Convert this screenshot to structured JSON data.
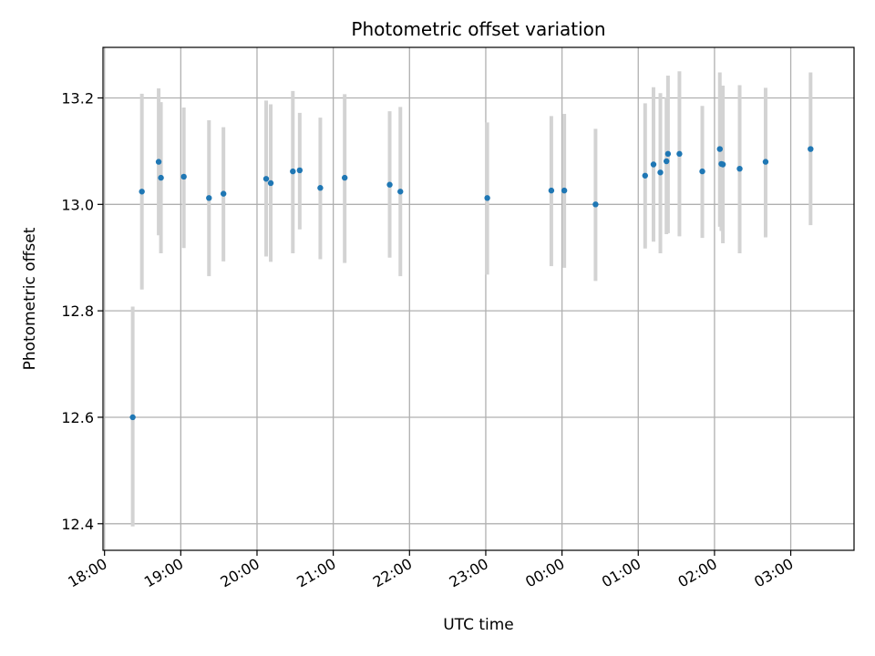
{
  "chart_data": {
    "type": "scatter",
    "title": "Photometric offset variation",
    "xlabel": "UTC time",
    "ylabel": "Photometric offset",
    "x_unit": "hours since 18:00 UTC (x tick labels show clock time)",
    "xlim": [
      -0.02,
      9.83
    ],
    "ylim": [
      12.35,
      13.295
    ],
    "x_ticks": [
      0,
      1,
      2,
      3,
      4,
      5,
      6,
      7,
      8,
      9
    ],
    "x_tick_labels": [
      "18:00",
      "19:00",
      "20:00",
      "21:00",
      "22:00",
      "23:00",
      "00:00",
      "01:00",
      "02:00",
      "03:00"
    ],
    "y_ticks": [
      12.4,
      12.6,
      12.8,
      13.0,
      13.2
    ],
    "y_tick_labels": [
      "12.4",
      "12.6",
      "12.8",
      "13.0",
      "13.2"
    ],
    "grid": true,
    "colors": {
      "point": "#1f77b4",
      "errorbar": "#d3d3d3",
      "grid": "#b0b0b0",
      "axes": "#000000"
    },
    "points": [
      {
        "time": "18:22",
        "x": 0.37,
        "y": 12.6,
        "ylow": 12.395,
        "yhigh": 12.808
      },
      {
        "time": "18:29",
        "x": 0.49,
        "y": 13.024,
        "ylow": 12.84,
        "yhigh": 13.208
      },
      {
        "time": "18:42",
        "x": 0.71,
        "y": 13.08,
        "ylow": 12.942,
        "yhigh": 13.218
      },
      {
        "time": "18:44",
        "x": 0.74,
        "y": 13.05,
        "ylow": 12.908,
        "yhigh": 13.192
      },
      {
        "time": "19:03",
        "x": 1.04,
        "y": 13.052,
        "ylow": 12.918,
        "yhigh": 13.182
      },
      {
        "time": "19:22",
        "x": 1.37,
        "y": 13.012,
        "ylow": 12.865,
        "yhigh": 13.158
      },
      {
        "time": "19:33",
        "x": 1.56,
        "y": 13.02,
        "ylow": 12.893,
        "yhigh": 13.145
      },
      {
        "time": "20:07",
        "x": 2.12,
        "y": 13.048,
        "ylow": 12.902,
        "yhigh": 13.195
      },
      {
        "time": "20:11",
        "x": 2.18,
        "y": 13.04,
        "ylow": 12.892,
        "yhigh": 13.188
      },
      {
        "time": "20:28",
        "x": 2.47,
        "y": 13.062,
        "ylow": 12.908,
        "yhigh": 13.213
      },
      {
        "time": "20:34",
        "x": 2.56,
        "y": 13.064,
        "ylow": 12.953,
        "yhigh": 13.172
      },
      {
        "time": "20:50",
        "x": 2.83,
        "y": 13.031,
        "ylow": 12.897,
        "yhigh": 13.163
      },
      {
        "time": "21:09",
        "x": 3.15,
        "y": 13.05,
        "ylow": 12.89,
        "yhigh": 13.207
      },
      {
        "time": "21:44",
        "x": 3.74,
        "y": 13.037,
        "ylow": 12.9,
        "yhigh": 13.175
      },
      {
        "time": "21:52",
        "x": 3.88,
        "y": 13.024,
        "ylow": 12.865,
        "yhigh": 13.183
      },
      {
        "time": "23:01",
        "x": 5.02,
        "y": 13.012,
        "ylow": 12.868,
        "yhigh": 13.154
      },
      {
        "time": "23:51",
        "x": 5.86,
        "y": 13.026,
        "ylow": 12.884,
        "yhigh": 13.166
      },
      {
        "time": "00:02",
        "x": 6.03,
        "y": 13.026,
        "ylow": 12.881,
        "yhigh": 13.17
      },
      {
        "time": "00:26",
        "x": 6.44,
        "y": 13.0,
        "ylow": 12.856,
        "yhigh": 13.142
      },
      {
        "time": "01:05",
        "x": 7.09,
        "y": 13.054,
        "ylow": 12.917,
        "yhigh": 13.19
      },
      {
        "time": "01:12",
        "x": 7.2,
        "y": 13.075,
        "ylow": 12.93,
        "yhigh": 13.22
      },
      {
        "time": "01:17",
        "x": 7.29,
        "y": 13.06,
        "ylow": 12.908,
        "yhigh": 13.209
      },
      {
        "time": "01:22",
        "x": 7.37,
        "y": 13.081,
        "ylow": 12.944,
        "yhigh": 13.201
      },
      {
        "time": "01:23",
        "x": 7.39,
        "y": 13.095,
        "ylow": 12.946,
        "yhigh": 13.242
      },
      {
        "time": "01:32",
        "x": 7.54,
        "y": 13.095,
        "ylow": 12.94,
        "yhigh": 13.25
      },
      {
        "time": "01:50",
        "x": 7.84,
        "y": 13.062,
        "ylow": 12.937,
        "yhigh": 13.185
      },
      {
        "time": "02:04",
        "x": 8.07,
        "y": 13.104,
        "ylow": 12.958,
        "yhigh": 13.248
      },
      {
        "time": "02:05",
        "x": 8.09,
        "y": 13.076,
        "ylow": 12.95,
        "yhigh": 13.2
      },
      {
        "time": "02:07",
        "x": 8.11,
        "y": 13.075,
        "ylow": 12.927,
        "yhigh": 13.223
      },
      {
        "time": "02:20",
        "x": 8.33,
        "y": 13.067,
        "ylow": 12.908,
        "yhigh": 13.224
      },
      {
        "time": "02:40",
        "x": 8.67,
        "y": 13.08,
        "ylow": 12.938,
        "yhigh": 13.219
      },
      {
        "time": "03:15",
        "x": 9.26,
        "y": 13.104,
        "ylow": 12.961,
        "yhigh": 13.248
      }
    ]
  }
}
